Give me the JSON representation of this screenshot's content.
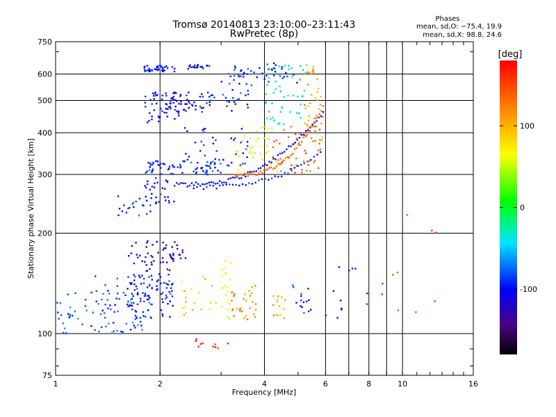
{
  "chart_data": {
    "type": "scatter",
    "title": "Tromsø 20140813 23:10:00–23:11:43",
    "subtitle": "RwPretec (8p)",
    "xlabel": "Frequency [MHz]",
    "ylabel": "Stationary phase Virtual Height [km]",
    "x_scale": "log",
    "y_scale": "log",
    "xlim": [
      1,
      16
    ],
    "ylim": [
      75,
      750
    ],
    "x_ticks": [
      1,
      2,
      4,
      6,
      8,
      10,
      16
    ],
    "x_minor_ticks": [
      7,
      9
    ],
    "y_ticks": [
      75,
      100,
      200,
      300,
      400,
      500,
      600,
      750
    ],
    "grid": true,
    "stats": {
      "header": "Phases",
      "line_o": "mean, sd,O: −75.4, 19.9",
      "line_x": "mean, sd,X:  98.8, 24.6"
    },
    "colorbar": {
      "label": "[deg]",
      "min": -180,
      "max": 180,
      "ticks": [
        100,
        0,
        -100
      ]
    },
    "traces": [
      {
        "x0": 1.0,
        "x1": 1.9,
        "y0": 100,
        "y1": 135,
        "phase": -80,
        "n": 70
      },
      {
        "x0": 1.3,
        "x1": 2.2,
        "y0": 110,
        "y1": 150,
        "phase": -90,
        "n": 80
      },
      {
        "x0": 1.6,
        "x1": 2.2,
        "y0": 120,
        "y1": 190,
        "phase": -110,
        "n": 70
      },
      {
        "x0": 1.8,
        "x1": 2.4,
        "y0": 160,
        "y1": 190,
        "phase": -130,
        "n": 25
      },
      {
        "x0": 1.5,
        "x1": 1.9,
        "y0": 225,
        "y1": 260,
        "phase": -85,
        "n": 20
      },
      {
        "x0": 1.8,
        "x1": 2.2,
        "y0": 240,
        "y1": 330,
        "phase": -100,
        "n": 40
      },
      {
        "x0": 1.8,
        "x1": 3.0,
        "y0": 300,
        "y1": 330,
        "phase": -90,
        "n": 50
      },
      {
        "x0": 1.8,
        "x1": 2.3,
        "y0": 430,
        "y1": 530,
        "phase": -105,
        "n": 60
      },
      {
        "x0": 1.8,
        "x1": 2.2,
        "y0": 610,
        "y1": 640,
        "phase": -95,
        "n": 40
      },
      {
        "x0": 2.2,
        "x1": 2.9,
        "y0": 460,
        "y1": 530,
        "phase": -100,
        "n": 40
      },
      {
        "x0": 2.4,
        "x1": 2.8,
        "y0": 620,
        "y1": 640,
        "phase": -100,
        "n": 20
      },
      {
        "x0": 3.0,
        "x1": 3.6,
        "y0": 460,
        "y1": 640,
        "phase": -90,
        "n": 40
      },
      {
        "x0": 2.3,
        "x1": 3.6,
        "y0": 300,
        "y1": 420,
        "phase": -100,
        "n": 50
      },
      {
        "x0": 3.2,
        "x1": 4.4,
        "y0": 300,
        "y1": 420,
        "phase": 60,
        "n": 40
      },
      {
        "x0": 4.2,
        "x1": 5.8,
        "y0": 300,
        "y1": 420,
        "phase": 140,
        "n": 50
      },
      {
        "x0": 5.2,
        "x1": 5.9,
        "y0": 380,
        "y1": 640,
        "phase": 110,
        "n": 40
      },
      {
        "x0": 4.0,
        "x1": 5.3,
        "y0": 420,
        "y1": 640,
        "phase": -40,
        "n": 50
      },
      {
        "x0": 3.6,
        "x1": 5.0,
        "y0": 550,
        "y1": 650,
        "phase": -95,
        "n": 25
      },
      {
        "x0": 2.3,
        "x1": 2.9,
        "y0": 110,
        "y1": 150,
        "phase": 90,
        "n": 20
      },
      {
        "x0": 3.0,
        "x1": 3.2,
        "y0": 110,
        "y1": 170,
        "phase": 60,
        "n": 20
      },
      {
        "x0": 3.2,
        "x1": 3.8,
        "y0": 110,
        "y1": 140,
        "phase": 120,
        "n": 30
      },
      {
        "x0": 4.2,
        "x1": 4.6,
        "y0": 110,
        "y1": 130,
        "phase": 100,
        "n": 15
      },
      {
        "x0": 4.8,
        "x1": 5.9,
        "y0": 115,
        "y1": 140,
        "phase": -95,
        "n": 15
      },
      {
        "x0": 6.0,
        "x1": 8.0,
        "y0": 110,
        "y1": 160,
        "phase": -100,
        "n": 12
      },
      {
        "x0": 8.5,
        "x1": 12.5,
        "y0": 110,
        "y1": 230,
        "phase": 150,
        "n": 10
      },
      {
        "x0": 2.4,
        "x1": 3.2,
        "y0": 90,
        "y1": 97,
        "phase": 160,
        "n": 10
      }
    ],
    "curves": [
      {
        "x0": 2.2,
        "x1": 5.9,
        "y0": 280,
        "y1": 460,
        "phase": -100,
        "n": 70
      },
      {
        "x0": 2.5,
        "x1": 5.8,
        "y0": 275,
        "y1": 350,
        "phase": -90,
        "n": 40
      },
      {
        "x0": 3.3,
        "x1": 5.9,
        "y0": 300,
        "y1": 480,
        "phase": 130,
        "n": 50
      }
    ]
  }
}
